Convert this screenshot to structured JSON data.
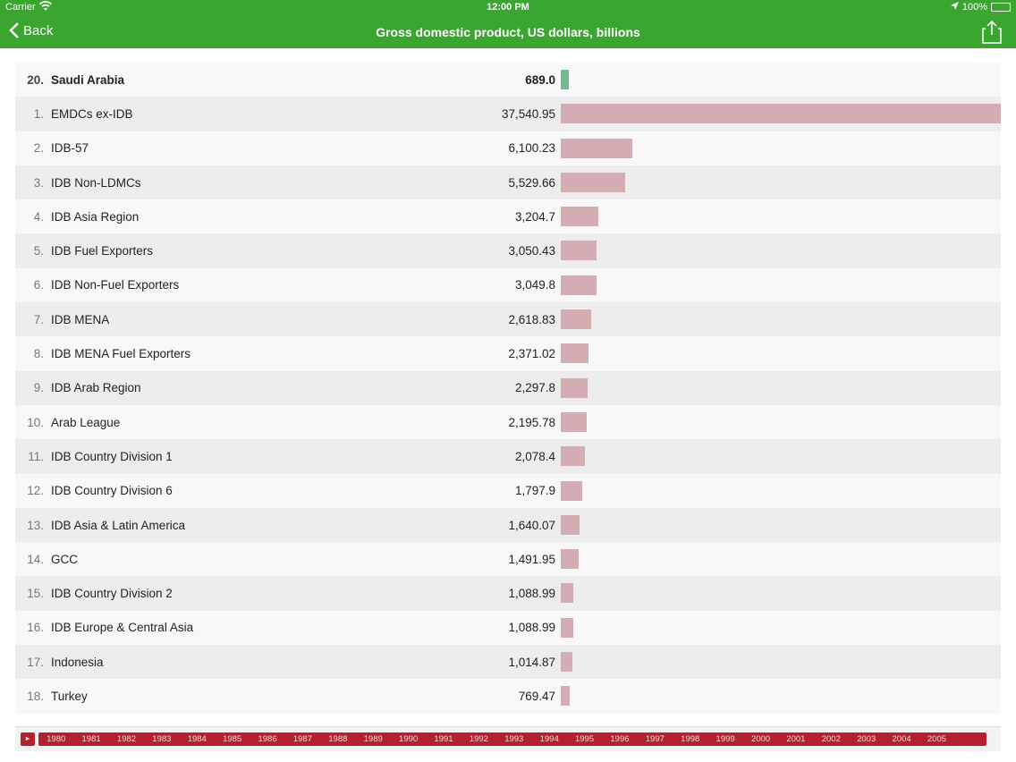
{
  "status": {
    "carrier": "Carrier",
    "time": "12:00 PM",
    "battery": "100%"
  },
  "nav": {
    "back_label": "Back",
    "title": "Gross domestic product, US dollars, billions"
  },
  "colors": {
    "accent": "#3aa52f",
    "bar": "#d4adb3",
    "highlight_bar": "#6cbc8f",
    "timeline": "#b3212f"
  },
  "chart_data": {
    "type": "bar",
    "max_value": 37540.95,
    "highlight": {
      "rank": "20.",
      "name": "Saudi Arabia",
      "value": 689.0,
      "label": "689.0"
    },
    "rows": [
      {
        "rank": "1.",
        "name": "EMDCs ex-IDB",
        "value": 37540.95,
        "label": "37,540.95"
      },
      {
        "rank": "2.",
        "name": "IDB-57",
        "value": 6100.23,
        "label": "6,100.23"
      },
      {
        "rank": "3.",
        "name": "IDB Non-LDMCs",
        "value": 5529.66,
        "label": "5,529.66"
      },
      {
        "rank": "4.",
        "name": "IDB Asia Region",
        "value": 3204.7,
        "label": "3,204.7"
      },
      {
        "rank": "5.",
        "name": "IDB Fuel Exporters",
        "value": 3050.43,
        "label": "3,050.43"
      },
      {
        "rank": "6.",
        "name": "IDB Non-Fuel Exporters",
        "value": 3049.8,
        "label": "3,049.8"
      },
      {
        "rank": "7.",
        "name": "IDB MENA",
        "value": 2618.83,
        "label": "2,618.83"
      },
      {
        "rank": "8.",
        "name": "IDB MENA Fuel Exporters",
        "value": 2371.02,
        "label": "2,371.02"
      },
      {
        "rank": "9.",
        "name": "IDB Arab Region",
        "value": 2297.8,
        "label": "2,297.8"
      },
      {
        "rank": "10.",
        "name": "Arab League",
        "value": 2195.78,
        "label": "2,195.78"
      },
      {
        "rank": "11.",
        "name": "IDB Country Division 1",
        "value": 2078.4,
        "label": "2,078.4"
      },
      {
        "rank": "12.",
        "name": "IDB Country Division 6",
        "value": 1797.9,
        "label": "1,797.9"
      },
      {
        "rank": "13.",
        "name": "IDB Asia & Latin America",
        "value": 1640.07,
        "label": "1,640.07"
      },
      {
        "rank": "14.",
        "name": "GCC",
        "value": 1491.95,
        "label": "1,491.95"
      },
      {
        "rank": "15.",
        "name": "IDB Country Division 2",
        "value": 1088.99,
        "label": "1,088.99"
      },
      {
        "rank": "16.",
        "name": "IDB Europe & Central Asia",
        "value": 1088.99,
        "label": "1,088.99"
      },
      {
        "rank": "17.",
        "name": "Indonesia",
        "value": 1014.87,
        "label": "1,014.87"
      },
      {
        "rank": "18.",
        "name": "Turkey",
        "value": 769.47,
        "label": "769.47"
      }
    ]
  },
  "timeline": {
    "play_icon": "play-icon",
    "years": [
      "1980",
      "1981",
      "1982",
      "1983",
      "1984",
      "1985",
      "1986",
      "1987",
      "1988",
      "1989",
      "1990",
      "1991",
      "1992",
      "1993",
      "1994",
      "1995",
      "1996",
      "1997",
      "1998",
      "1999",
      "2000",
      "2001",
      "2002",
      "2003",
      "2004",
      "2005"
    ]
  }
}
